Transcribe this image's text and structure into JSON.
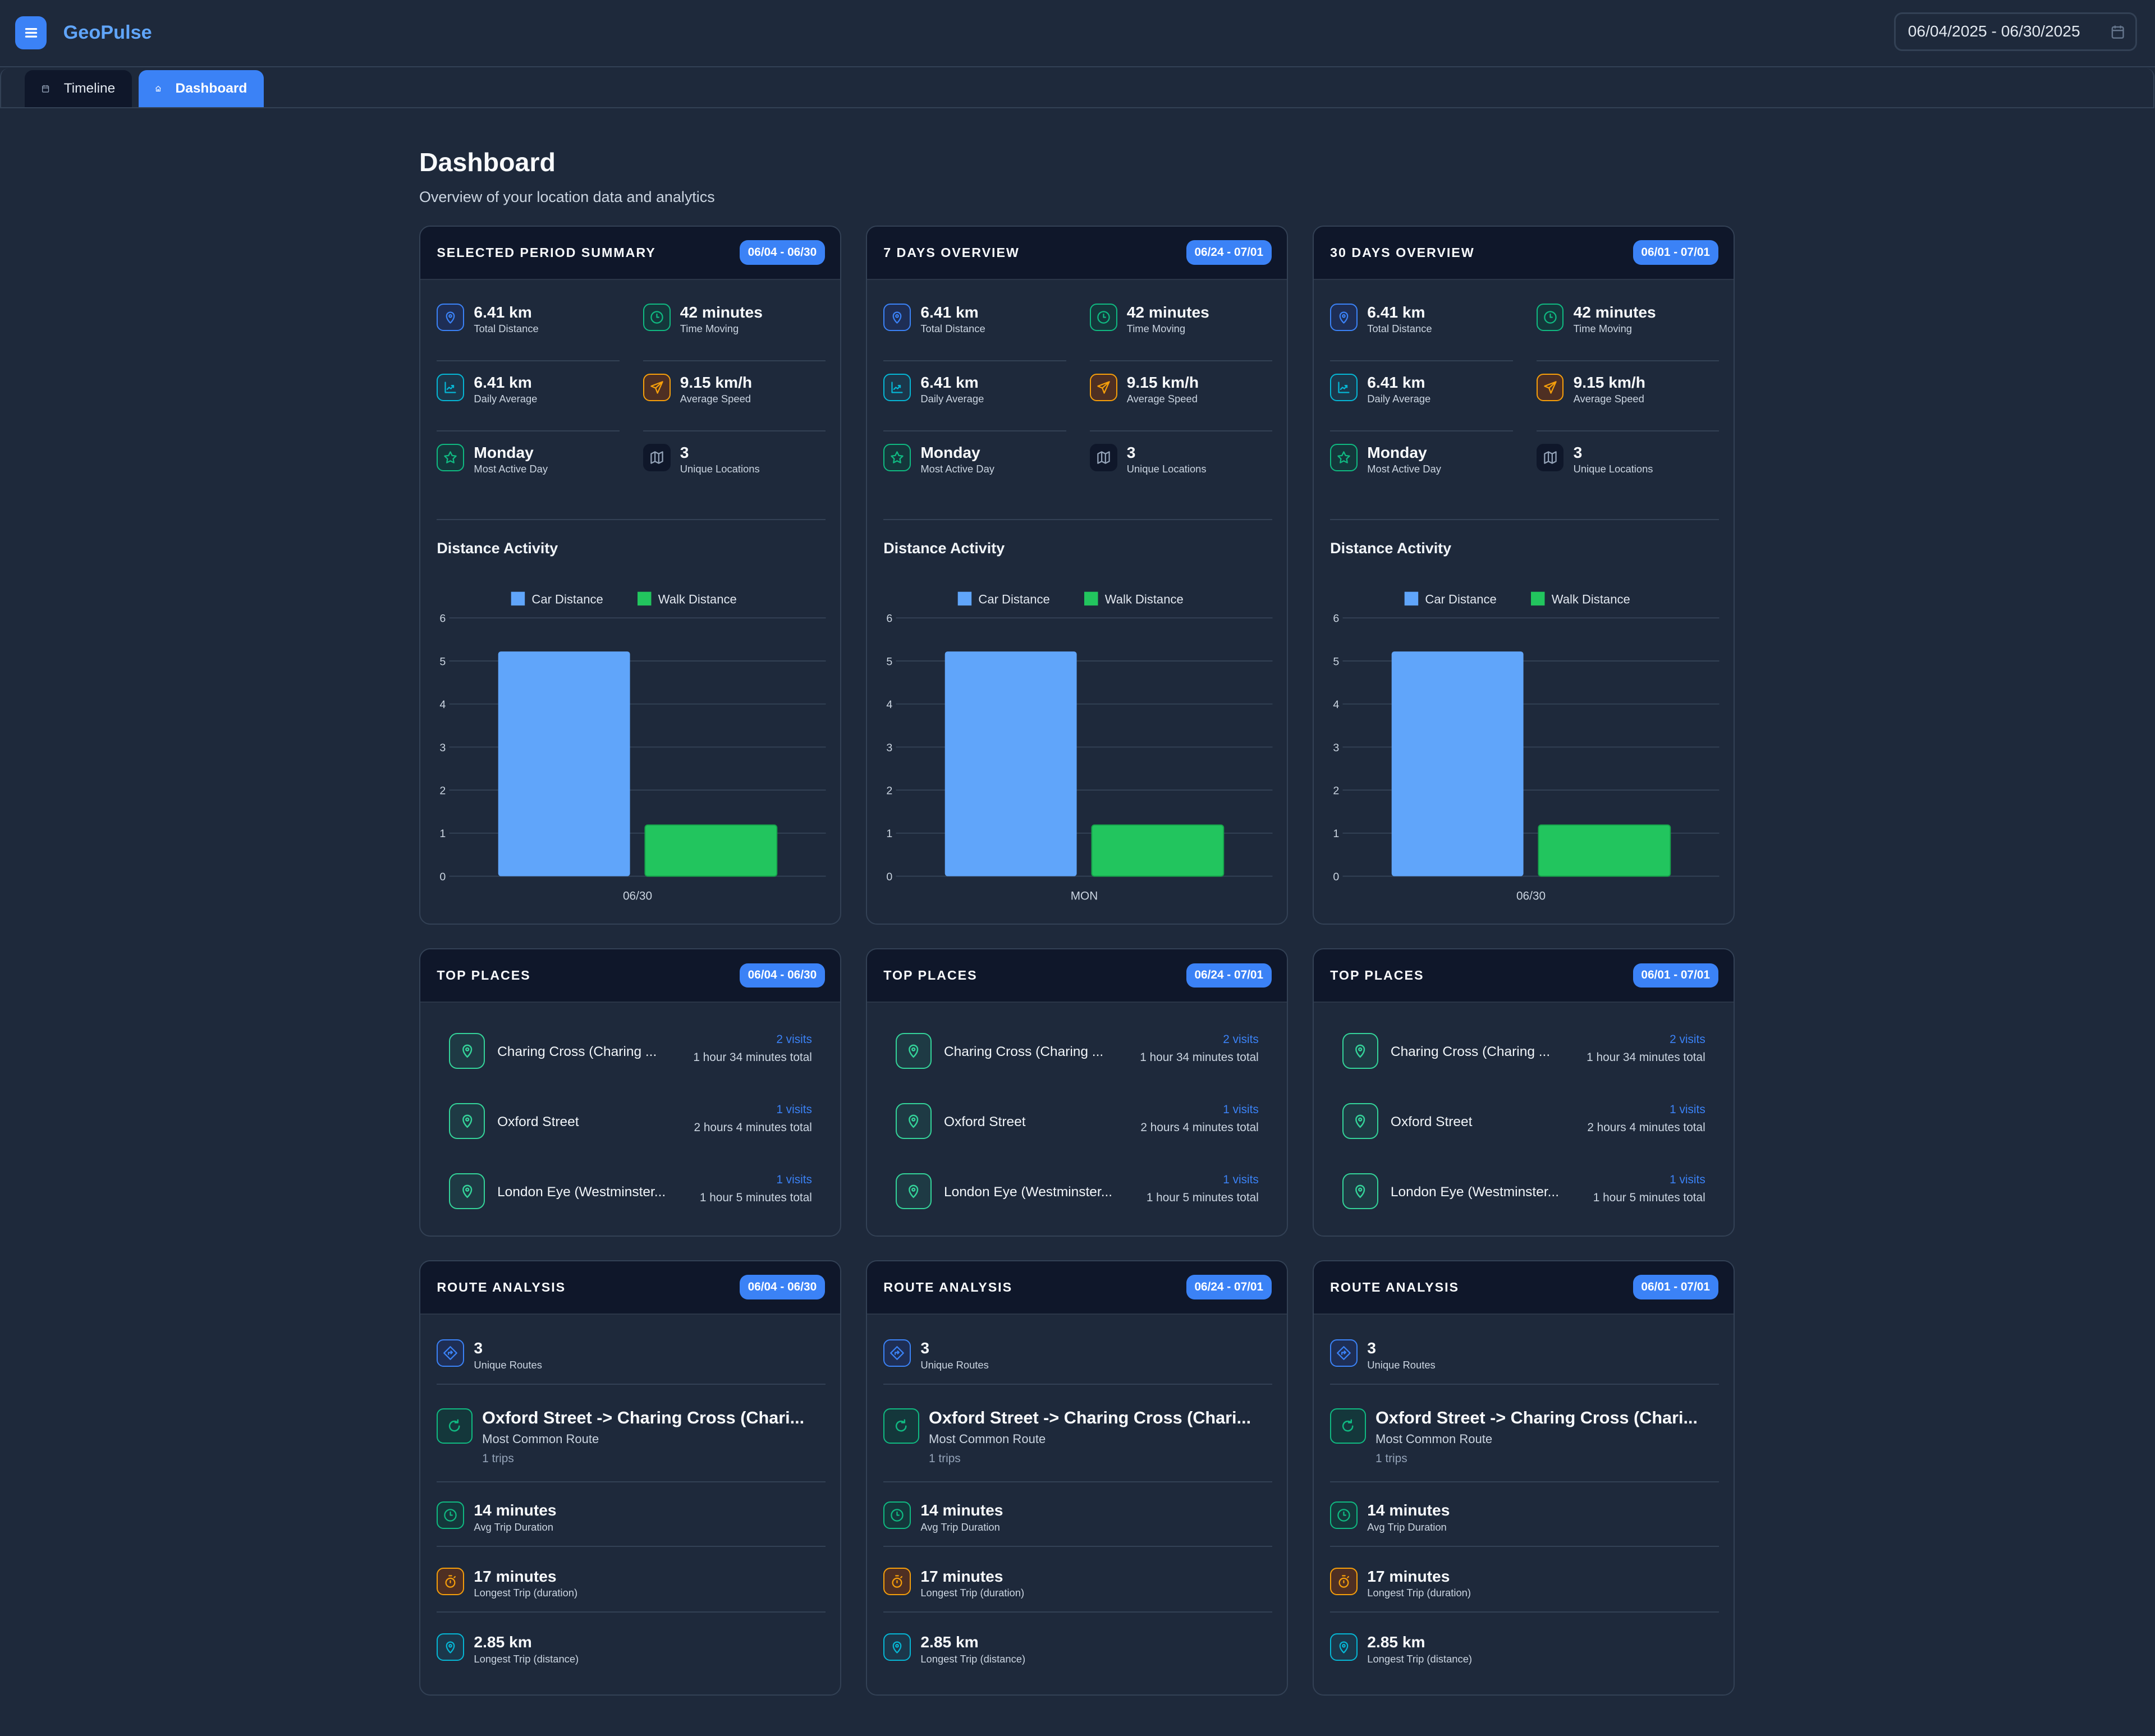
{
  "app": {
    "title": "GeoPulse",
    "date_range": "06/04/2025 - 06/30/2025",
    "menu_icon": "hamburger-icon",
    "calendar_icon": "calendar-icon"
  },
  "tabs": [
    {
      "label": "Timeline",
      "icon": "calendar-icon",
      "active": false
    },
    {
      "label": "Dashboard",
      "icon": "home-icon",
      "active": true
    }
  ],
  "page": {
    "title": "Dashboard",
    "subtitle": "Overview of your location data and analytics"
  },
  "colors": {
    "accent": "#3b82f6",
    "car": "#60a5fa",
    "walk": "#22c55e",
    "green": "#10b981",
    "cyan": "#06b6d4",
    "amber": "#f59e0b",
    "gray": "#94a3b8",
    "card_header": "#0f172a",
    "background": "#1e293b"
  },
  "columns": [
    {
      "summary": {
        "title": "SELECTED PERIOD SUMMARY",
        "badge": "06/04 - 06/30",
        "chart_title": "Distance Activity",
        "stats": [
          {
            "value": "6.41 km",
            "label": "Total Distance",
            "icon": "pin",
            "color": "blue"
          },
          {
            "value": "42 minutes",
            "label": "Time Moving",
            "icon": "clock",
            "color": "green"
          },
          {
            "value": "6.41 km",
            "label": "Daily Average",
            "icon": "chart",
            "color": "cyan"
          },
          {
            "value": "9.15 km/h",
            "label": "Average Speed",
            "icon": "send",
            "color": "amber"
          },
          {
            "value": "Monday",
            "label": "Most Active Day",
            "icon": "star",
            "color": "green"
          },
          {
            "value": "3",
            "label": "Unique Locations",
            "icon": "map",
            "color": "gray"
          }
        ]
      },
      "top_places": {
        "title": "TOP PLACES",
        "badge": "06/04 - 06/30",
        "items": [
          {
            "name": "Charing Cross (Charing ...",
            "visits": "2 visits",
            "total": "1 hour 34 minutes total"
          },
          {
            "name": "Oxford Street",
            "visits": "1 visits",
            "total": "2 hours 4 minutes total"
          },
          {
            "name": "London Eye (Westminster...",
            "visits": "1 visits",
            "total": "1 hour 5 minutes total"
          }
        ]
      },
      "routes": {
        "title": "ROUTE ANALYSIS",
        "badge": "06/04 - 06/30",
        "unique": {
          "value": "3",
          "label": "Unique Routes"
        },
        "common": {
          "value": "Oxford Street -> Charing Cross (Chari...",
          "label": "Most Common Route",
          "trips": "1 trips"
        },
        "stats": [
          {
            "value": "14 minutes",
            "label": "Avg Trip Duration",
            "icon": "clock",
            "color": "green"
          },
          {
            "value": "17 minutes",
            "label": "Longest Trip (duration)",
            "icon": "stopwatch",
            "color": "amber"
          },
          {
            "value": "2.85 km",
            "label": "Longest Trip (distance)",
            "icon": "pin",
            "color": "cyan"
          }
        ]
      }
    },
    {
      "summary": {
        "title": "7 DAYS OVERVIEW",
        "badge": "06/24 - 07/01",
        "chart_title": "Distance Activity",
        "stats": [
          {
            "value": "6.41 km",
            "label": "Total Distance",
            "icon": "pin",
            "color": "blue"
          },
          {
            "value": "42 minutes",
            "label": "Time Moving",
            "icon": "clock",
            "color": "green"
          },
          {
            "value": "6.41 km",
            "label": "Daily Average",
            "icon": "chart",
            "color": "cyan"
          },
          {
            "value": "9.15 km/h",
            "label": "Average Speed",
            "icon": "send",
            "color": "amber"
          },
          {
            "value": "Monday",
            "label": "Most Active Day",
            "icon": "star",
            "color": "green"
          },
          {
            "value": "3",
            "label": "Unique Locations",
            "icon": "map",
            "color": "gray"
          }
        ]
      },
      "top_places": {
        "title": "TOP PLACES",
        "badge": "06/24 - 07/01",
        "items": [
          {
            "name": "Charing Cross (Charing ...",
            "visits": "2 visits",
            "total": "1 hour 34 minutes total"
          },
          {
            "name": "Oxford Street",
            "visits": "1 visits",
            "total": "2 hours 4 minutes total"
          },
          {
            "name": "London Eye (Westminster...",
            "visits": "1 visits",
            "total": "1 hour 5 minutes total"
          }
        ]
      },
      "routes": {
        "title": "ROUTE ANALYSIS",
        "badge": "06/24 - 07/01",
        "unique": {
          "value": "3",
          "label": "Unique Routes"
        },
        "common": {
          "value": "Oxford Street -> Charing Cross (Chari...",
          "label": "Most Common Route",
          "trips": "1 trips"
        },
        "stats": [
          {
            "value": "14 minutes",
            "label": "Avg Trip Duration",
            "icon": "clock",
            "color": "green"
          },
          {
            "value": "17 minutes",
            "label": "Longest Trip (duration)",
            "icon": "stopwatch",
            "color": "amber"
          },
          {
            "value": "2.85 km",
            "label": "Longest Trip (distance)",
            "icon": "pin",
            "color": "cyan"
          }
        ]
      }
    },
    {
      "summary": {
        "title": "30 DAYS OVERVIEW",
        "badge": "06/01 - 07/01",
        "chart_title": "Distance Activity",
        "stats": [
          {
            "value": "6.41 km",
            "label": "Total Distance",
            "icon": "pin",
            "color": "blue"
          },
          {
            "value": "42 minutes",
            "label": "Time Moving",
            "icon": "clock",
            "color": "green"
          },
          {
            "value": "6.41 km",
            "label": "Daily Average",
            "icon": "chart",
            "color": "cyan"
          },
          {
            "value": "9.15 km/h",
            "label": "Average Speed",
            "icon": "send",
            "color": "amber"
          },
          {
            "value": "Monday",
            "label": "Most Active Day",
            "icon": "star",
            "color": "green"
          },
          {
            "value": "3",
            "label": "Unique Locations",
            "icon": "map",
            "color": "gray"
          }
        ]
      },
      "top_places": {
        "title": "TOP PLACES",
        "badge": "06/01 - 07/01",
        "items": [
          {
            "name": "Charing Cross (Charing ...",
            "visits": "2 visits",
            "total": "1 hour 34 minutes total"
          },
          {
            "name": "Oxford Street",
            "visits": "1 visits",
            "total": "2 hours 4 minutes total"
          },
          {
            "name": "London Eye (Westminster...",
            "visits": "1 visits",
            "total": "1 hour 5 minutes total"
          }
        ]
      },
      "routes": {
        "title": "ROUTE ANALYSIS",
        "badge": "06/01 - 07/01",
        "unique": {
          "value": "3",
          "label": "Unique Routes"
        },
        "common": {
          "value": "Oxford Street -> Charing Cross (Chari...",
          "label": "Most Common Route",
          "trips": "1 trips"
        },
        "stats": [
          {
            "value": "14 minutes",
            "label": "Avg Trip Duration",
            "icon": "clock",
            "color": "green"
          },
          {
            "value": "17 minutes",
            "label": "Longest Trip (duration)",
            "icon": "stopwatch",
            "color": "amber"
          },
          {
            "value": "2.85 km",
            "label": "Longest Trip (distance)",
            "icon": "pin",
            "color": "cyan"
          }
        ]
      }
    }
  ],
  "chart_data": [
    {
      "type": "bar",
      "categories": [
        "06/30"
      ],
      "series": [
        {
          "name": "Car Distance",
          "values": [
            5.22
          ],
          "color": "#60a5fa"
        },
        {
          "name": "Walk Distance",
          "values": [
            1.19
          ],
          "color": "#22c55e"
        }
      ],
      "ylim": [
        0,
        6
      ],
      "yticks": [
        "0",
        "1",
        "2",
        "3",
        "4",
        "5",
        "6"
      ],
      "grid": true,
      "legend": "top"
    },
    {
      "type": "bar",
      "categories": [
        "MON"
      ],
      "series": [
        {
          "name": "Car Distance",
          "values": [
            5.22
          ],
          "color": "#60a5fa"
        },
        {
          "name": "Walk Distance",
          "values": [
            1.19
          ],
          "color": "#22c55e"
        }
      ],
      "ylim": [
        0,
        6
      ],
      "yticks": [
        "0",
        "1",
        "2",
        "3",
        "4",
        "5",
        "6"
      ],
      "grid": true,
      "legend": "top"
    },
    {
      "type": "bar",
      "categories": [
        "06/30"
      ],
      "series": [
        {
          "name": "Car Distance",
          "values": [
            5.22
          ],
          "color": "#60a5fa"
        },
        {
          "name": "Walk Distance",
          "values": [
            1.19
          ],
          "color": "#22c55e"
        }
      ],
      "ylim": [
        0,
        6
      ],
      "yticks": [
        "0",
        "1",
        "2",
        "3",
        "4",
        "5",
        "6"
      ],
      "grid": true,
      "legend": "top"
    }
  ]
}
